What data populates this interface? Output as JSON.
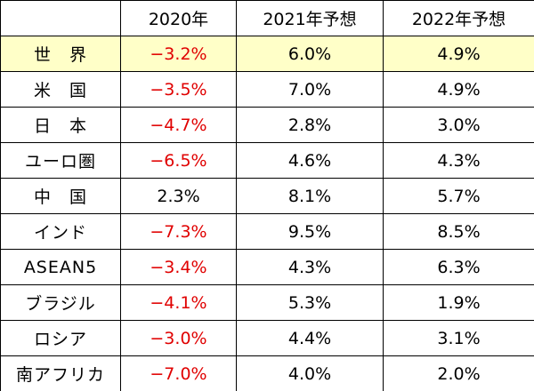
{
  "table": {
    "headers": [
      "2020年",
      "2021年予想",
      "2022年予想"
    ],
    "rows": [
      [
        "世　界",
        "−3.2%",
        "6.0%",
        "4.9%"
      ],
      [
        "米　国",
        "−3.5%",
        "7.0%",
        "4.9%"
      ],
      [
        "日　本",
        "−4.7%",
        "2.8%",
        "3.0%"
      ],
      [
        "ユーロ圏",
        "−6.5%",
        "4.6%",
        "4.3%"
      ],
      [
        "中　国",
        "2.3%",
        "8.1%",
        "5.7%"
      ],
      [
        "インド",
        "−7.3%",
        "9.5%",
        "8.5%"
      ],
      [
        "ASEAN5",
        "−3.4%",
        "4.3%",
        "6.3%"
      ],
      [
        "ブラジル",
        "−4.1%",
        "5.3%",
        "1.9%"
      ],
      [
        "ロシア",
        "−3.0%",
        "4.4%",
        "3.1%"
      ],
      [
        "南アフリカ",
        "−7.0%",
        "4.0%",
        "2.0%"
      ]
    ]
  }
}
